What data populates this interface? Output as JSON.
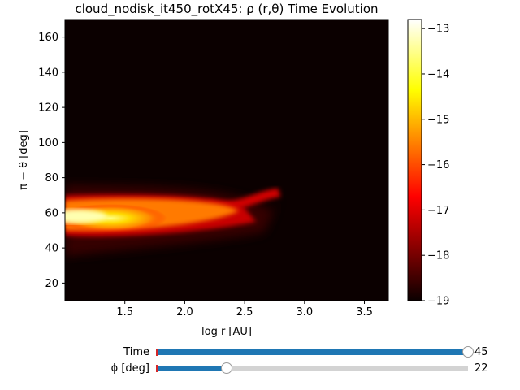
{
  "chart_data": {
    "type": "heatmap",
    "title": "cloud_nodisk_it450_rotX45: ρ (r,θ) Time Evolution",
    "xlabel": "log r [AU]",
    "ylabel": "π − θ [deg]",
    "xlim": [
      1.0,
      3.7
    ],
    "ylim": [
      10,
      170
    ],
    "xticks": [
      1.5,
      2.0,
      2.5,
      3.0,
      3.5
    ],
    "xtick_labels": [
      "1.5",
      "2.0",
      "2.5",
      "3.0",
      "3.5"
    ],
    "yticks": [
      20,
      40,
      60,
      80,
      100,
      120,
      140,
      160
    ],
    "ytick_labels": [
      "20",
      "40",
      "60",
      "80",
      "100",
      "120",
      "140",
      "160"
    ],
    "colormap": "hot",
    "colorbar": {
      "vmin": -19,
      "vmax": -12.8,
      "ticks": [
        -19,
        -18,
        -17,
        -16,
        -15,
        -14,
        -13
      ],
      "tick_labels": [
        "−19",
        "−18",
        "−17",
        "−16",
        "−15",
        "−14",
        "−13"
      ]
    },
    "features": [
      {
        "description": "dense lobe",
        "x_range": [
          1.0,
          2.8
        ],
        "y_center": 57,
        "peak": -14.0
      }
    ]
  },
  "sliders": [
    {
      "label": "Time",
      "value_text": "45",
      "fraction": 1.0
    },
    {
      "label": "ϕ [deg]",
      "value_text": "22",
      "fraction": 0.226
    }
  ],
  "colors": {
    "slider_fill": "#1f77b4",
    "slider_track": "#d3d3d3",
    "slider_init": "#d62728"
  }
}
